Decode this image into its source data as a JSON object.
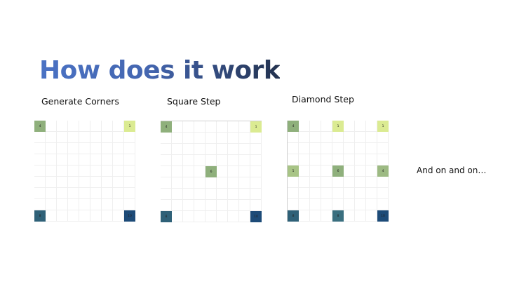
{
  "title": "How does it work",
  "panels": [
    {
      "label": "Generate Corners",
      "cells": [
        {
          "value": "4"
        },
        {
          "value": "1"
        },
        {
          "value": "8"
        },
        {
          "value": "10"
        }
      ]
    },
    {
      "label": "Square Step",
      "cells": [
        {
          "value": "4"
        },
        {
          "value": "1"
        },
        {
          "value": "6"
        },
        {
          "value": "8"
        },
        {
          "value": "10"
        }
      ]
    },
    {
      "label": "Diamond Step",
      "cells": [
        {
          "value": "4"
        },
        {
          "value": "1"
        },
        {
          "value": "1"
        },
        {
          "value": "5"
        },
        {
          "value": "6"
        },
        {
          "value": "4"
        },
        {
          "value": "8"
        },
        {
          "value": "8"
        },
        {
          "value": "10"
        }
      ]
    }
  ],
  "side_note": "And on and on…",
  "colors": {
    "title_start": "#4a72c4",
    "title_end": "#23324f",
    "light_green": "#dbeb92",
    "mid_green": "#8fb07c",
    "teal": "#2f6178",
    "navy": "#1d4b78"
  }
}
